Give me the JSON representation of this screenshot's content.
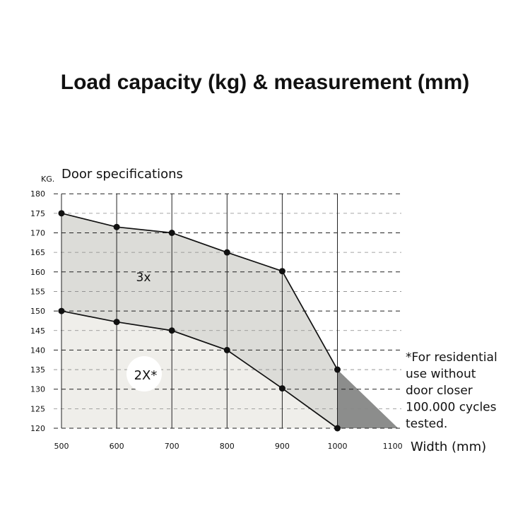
{
  "title": "Load capacity (kg) & measurement (mm)",
  "chart_data": {
    "type": "area",
    "title": "Load capacity (kg) & measurement (mm)",
    "subtitle": "Door specifications",
    "ylabel": "KG.",
    "xlabel": "Width (mm)",
    "xlim": [
      500,
      1100
    ],
    "ylim": [
      120,
      180
    ],
    "x_ticks": [
      "500",
      "600",
      "700",
      "800",
      "900",
      "1000",
      "1100"
    ],
    "y_ticks": [
      "180",
      "175",
      "170",
      "165",
      "160",
      "155",
      "150",
      "145",
      "140",
      "135",
      "130",
      "125",
      "120"
    ],
    "grid": true,
    "series": [
      {
        "name": "3x",
        "x": [
          500,
          600,
          700,
          800,
          900,
          1000
        ],
        "y": [
          175,
          171.5,
          170,
          165,
          160.2,
          135
        ]
      },
      {
        "name": "2X*",
        "x": [
          500,
          600,
          700,
          800,
          900,
          1000
        ],
        "y": [
          150,
          147.2,
          145,
          140,
          130.2,
          120
        ]
      }
    ],
    "extension": {
      "x": [
        1000,
        1000,
        1110
      ],
      "y": [
        135,
        120,
        120
      ]
    },
    "annotation": [
      "*For residential",
      "use without",
      "door closer",
      "100.000 cycles",
      "tested."
    ],
    "colors": {
      "band_3x": "#dcdcd8",
      "band_2x": "#efeeea",
      "extension": "#8c8d8c",
      "line": "#111111",
      "grid": "#222222"
    }
  }
}
